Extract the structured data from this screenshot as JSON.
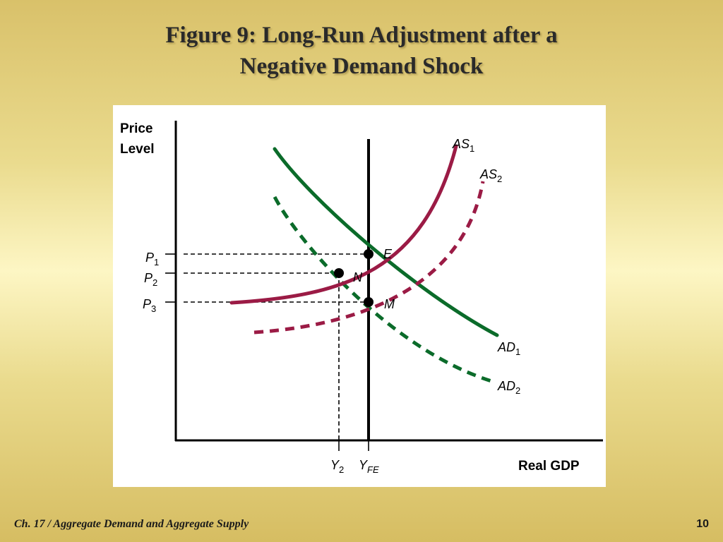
{
  "slide": {
    "title_line1": "Figure 9: Long-Run Adjustment after a",
    "title_line2": "Negative Demand Shock",
    "footer_left": "Ch. 17 / Aggregate Demand and Aggregate Supply",
    "page_number": "10"
  },
  "diagram": {
    "y_axis_line1": "Price",
    "y_axis_line2": "Level",
    "x_axis_label": "Real GDP",
    "curves": {
      "as1": {
        "letters": "AS",
        "sub": "1",
        "color": "#9b1b45",
        "style": "solid"
      },
      "as2": {
        "letters": "AS",
        "sub": "2",
        "color": "#9b1b45",
        "style": "dashed"
      },
      "ad1": {
        "letters": "AD",
        "sub": "1",
        "color": "#0b6b2a",
        "style": "solid"
      },
      "ad2": {
        "letters": "AD",
        "sub": "2",
        "color": "#0b6b2a",
        "style": "dashed"
      }
    },
    "points": {
      "e": "E",
      "n": "N",
      "m": "M"
    },
    "price_ticks": {
      "p1": {
        "letter": "P",
        "sub": "1"
      },
      "p2": {
        "letter": "P",
        "sub": "2"
      },
      "p3": {
        "letter": "P",
        "sub": "3"
      }
    },
    "output_ticks": {
      "y2": {
        "letter": "Y",
        "sub": "2"
      },
      "yfe": {
        "letter": "Y",
        "sub": "FE"
      }
    }
  }
}
